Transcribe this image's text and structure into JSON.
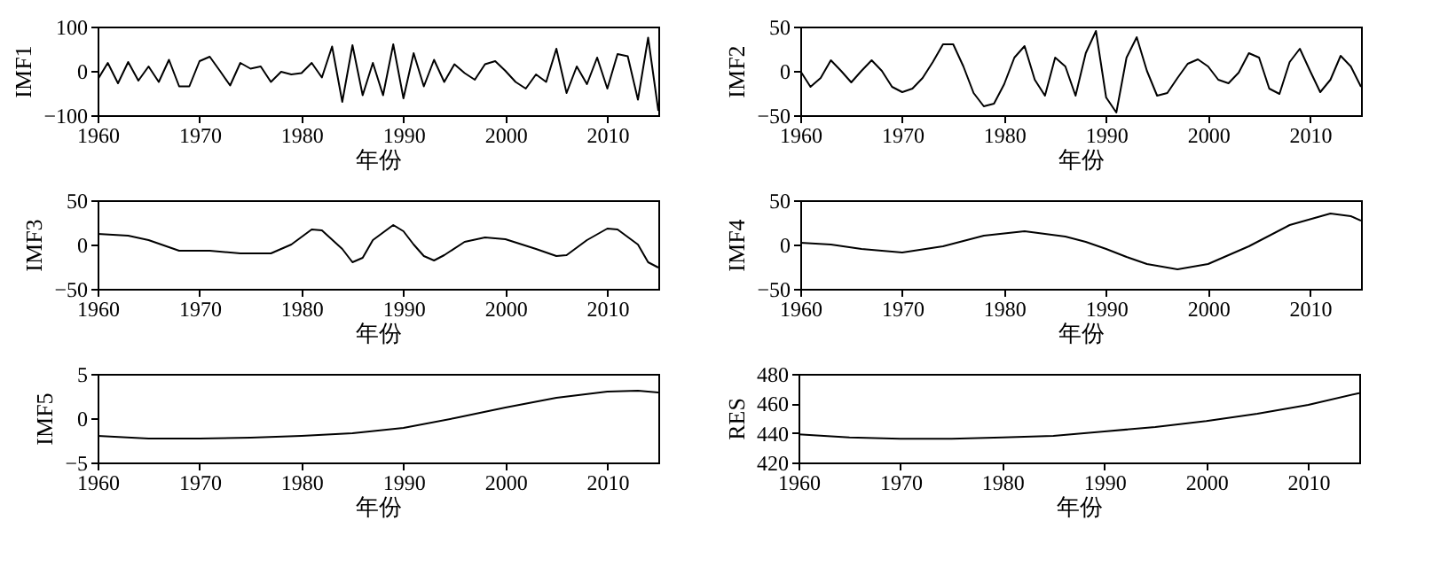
{
  "chart_data": [
    {
      "type": "line",
      "xlabel": "年份",
      "ylabel": "IMF1",
      "xlim": [
        1960,
        2015
      ],
      "xticks": [
        1960,
        1970,
        1980,
        1990,
        2000,
        2010
      ],
      "ylim": [
        -100,
        100
      ],
      "yticks": [
        -100,
        0,
        100
      ],
      "x": [
        1960,
        1961,
        1962,
        1963,
        1964,
        1965,
        1966,
        1967,
        1968,
        1969,
        1970,
        1971,
        1972,
        1973,
        1974,
        1975,
        1976,
        1977,
        1978,
        1979,
        1980,
        1981,
        1982,
        1983,
        1984,
        1985,
        1986,
        1987,
        1988,
        1989,
        1990,
        1991,
        1992,
        1993,
        1994,
        1995,
        1996,
        1997,
        1998,
        1999,
        2000,
        2001,
        2002,
        2003,
        2004,
        2005,
        2006,
        2007,
        2008,
        2009,
        2010,
        2011,
        2012,
        2013,
        2014,
        2015
      ],
      "series": [
        {
          "color": "#000000",
          "values": [
            -20,
            18,
            -28,
            20,
            -22,
            10,
            -25,
            25,
            -35,
            -35,
            22,
            32,
            0,
            -33,
            18,
            5,
            10,
            -25,
            -2,
            -8,
            -5,
            18,
            -15,
            55,
            -70,
            58,
            -55,
            18,
            -55,
            60,
            -62,
            40,
            -35,
            25,
            -25,
            15,
            -5,
            -20,
            15,
            22,
            0,
            -25,
            -40,
            -8,
            -25,
            50,
            -50,
            10,
            -30,
            30,
            -40,
            38,
            33,
            -65,
            75,
            -90
          ]
        }
      ]
    },
    {
      "type": "line",
      "xlabel": "年份",
      "ylabel": "IMF2",
      "xlim": [
        1960,
        2015
      ],
      "xticks": [
        1960,
        1970,
        1980,
        1990,
        2000,
        2010
      ],
      "ylim": [
        -50,
        50
      ],
      "yticks": [
        -50,
        0,
        50
      ],
      "x": [
        1960,
        1961,
        1962,
        1963,
        1964,
        1965,
        1966,
        1967,
        1968,
        1969,
        1970,
        1971,
        1972,
        1973,
        1974,
        1975,
        1976,
        1977,
        1978,
        1979,
        1980,
        1981,
        1982,
        1983,
        1984,
        1985,
        1986,
        1987,
        1988,
        1989,
        1990,
        1991,
        1992,
        1993,
        1994,
        1995,
        1996,
        1997,
        1998,
        1999,
        2000,
        2001,
        2002,
        2003,
        2004,
        2005,
        2006,
        2007,
        2008,
        2009,
        2010,
        2011,
        2012,
        2013,
        2014,
        2015
      ],
      "series": [
        {
          "color": "#000000",
          "values": [
            0,
            -18,
            -8,
            12,
            0,
            -13,
            0,
            12,
            0,
            -18,
            -24,
            -20,
            -8,
            10,
            30,
            30,
            5,
            -25,
            -40,
            -37,
            -15,
            15,
            28,
            -10,
            -28,
            15,
            5,
            -28,
            20,
            45,
            -30,
            -47,
            15,
            38,
            0,
            -28,
            -25,
            -8,
            8,
            13,
            5,
            -10,
            -14,
            -2,
            20,
            15,
            -20,
            -26,
            10,
            25,
            0,
            -24,
            -10,
            17,
            5,
            -18
          ]
        }
      ]
    },
    {
      "type": "line",
      "xlabel": "年份",
      "ylabel": "IMF3",
      "xlim": [
        1960,
        2015
      ],
      "xticks": [
        1960,
        1970,
        1980,
        1990,
        2000,
        2010
      ],
      "ylim": [
        -50,
        50
      ],
      "yticks": [
        -50,
        0,
        50
      ],
      "x": [
        1960,
        1963,
        1965,
        1968,
        1971,
        1974,
        1977,
        1979,
        1981,
        1982,
        1984,
        1985,
        1986,
        1987,
        1989,
        1990,
        1991,
        1992,
        1993,
        1994,
        1996,
        1998,
        2000,
        2003,
        2005,
        2006,
        2008,
        2010,
        2011,
        2013,
        2014,
        2015
      ],
      "series": [
        {
          "color": "#000000",
          "values": [
            12,
            10,
            5,
            -7,
            -7,
            -10,
            -10,
            0,
            17,
            16,
            -5,
            -20,
            -15,
            5,
            22,
            15,
            0,
            -13,
            -18,
            -12,
            3,
            8,
            6,
            -5,
            -13,
            -12,
            5,
            18,
            17,
            0,
            -20,
            -26
          ]
        }
      ]
    },
    {
      "type": "line",
      "xlabel": "年份",
      "ylabel": "IMF4",
      "xlim": [
        1960,
        2015
      ],
      "xticks": [
        1960,
        1970,
        1980,
        1990,
        2000,
        2010
      ],
      "ylim": [
        -50,
        50
      ],
      "yticks": [
        -50,
        0,
        50
      ],
      "x": [
        1960,
        1963,
        1966,
        1970,
        1974,
        1978,
        1982,
        1986,
        1988,
        1990,
        1992,
        1994,
        1997,
        2000,
        2004,
        2008,
        2012,
        2014,
        2015
      ],
      "series": [
        {
          "color": "#000000",
          "values": [
            2,
            0,
            -5,
            -9,
            -2,
            10,
            15,
            9,
            3,
            -5,
            -14,
            -22,
            -28,
            -22,
            -2,
            22,
            35,
            32,
            27
          ]
        }
      ]
    },
    {
      "type": "line",
      "xlabel": "年份",
      "ylabel": "IMF5",
      "xlim": [
        1960,
        2015
      ],
      "xticks": [
        1960,
        1970,
        1980,
        1990,
        2000,
        2010
      ],
      "ylim": [
        -5,
        5
      ],
      "yticks": [
        -5,
        0,
        5
      ],
      "x": [
        1960,
        1965,
        1970,
        1975,
        1980,
        1985,
        1990,
        1995,
        2000,
        2005,
        2010,
        2013,
        2015
      ],
      "series": [
        {
          "color": "#000000",
          "values": [
            -2,
            -2.3,
            -2.3,
            -2.2,
            -2,
            -1.7,
            -1.1,
            0,
            1.2,
            2.3,
            3,
            3.1,
            2.9
          ]
        }
      ]
    },
    {
      "type": "line",
      "xlabel": "年份",
      "ylabel": "RES",
      "xlim": [
        1960,
        2015
      ],
      "xticks": [
        1960,
        1970,
        1980,
        1990,
        2000,
        2010
      ],
      "ylim": [
        420,
        480
      ],
      "yticks": [
        420,
        440,
        460,
        480
      ],
      "x": [
        1960,
        1965,
        1970,
        1975,
        1980,
        1985,
        1990,
        1995,
        2000,
        2005,
        2010,
        2015
      ],
      "series": [
        {
          "color": "#000000",
          "values": [
            439,
            437,
            436,
            436,
            437,
            438,
            441,
            444,
            448,
            453,
            459,
            467
          ]
        }
      ]
    }
  ]
}
